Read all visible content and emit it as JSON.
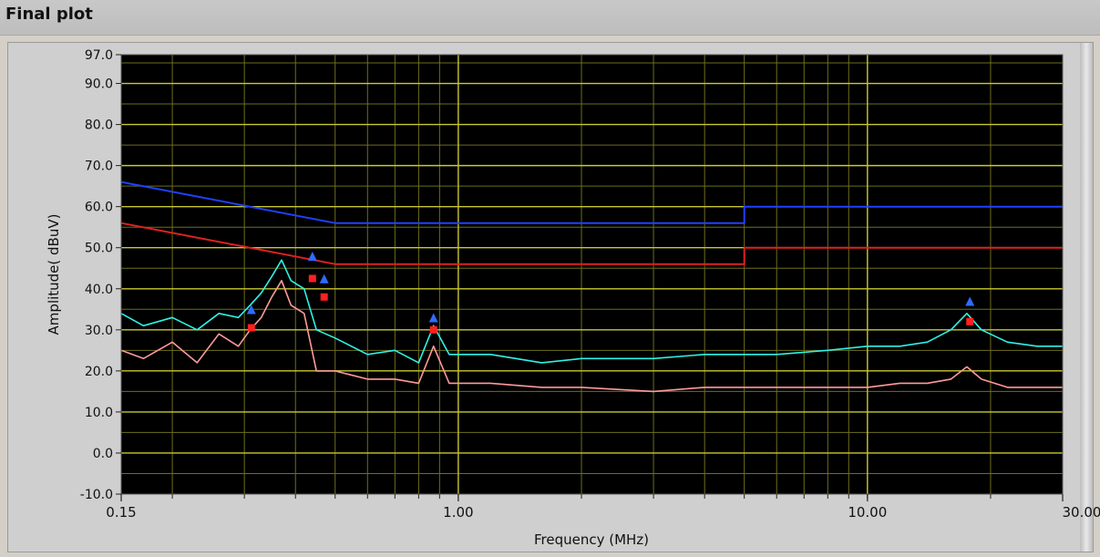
{
  "window": {
    "title": "Final plot"
  },
  "chart_data": {
    "type": "line",
    "xscale": "log",
    "xlim": [
      0.15,
      30.0
    ],
    "ylim": [
      -10.0,
      97.0
    ],
    "xlabel": "Frequency (MHz)",
    "ylabel": "Amplitude( dBuV)",
    "grid": true,
    "x_tick_labels": [
      {
        "value": 0.15,
        "label": "0.15"
      },
      {
        "value": 1.0,
        "label": "1.00"
      },
      {
        "value": 10.0,
        "label": "10.00"
      },
      {
        "value": 30.0,
        "label": "30.00"
      }
    ],
    "y_tick_labels": [
      {
        "value": 97.0,
        "label": "97.0"
      },
      {
        "value": 90.0,
        "label": "90.0"
      },
      {
        "value": 80.0,
        "label": "80.0"
      },
      {
        "value": 70.0,
        "label": "70.0"
      },
      {
        "value": 60.0,
        "label": "60.0"
      },
      {
        "value": 50.0,
        "label": "50.0"
      },
      {
        "value": 40.0,
        "label": "40.0"
      },
      {
        "value": 30.0,
        "label": "30.0"
      },
      {
        "value": 20.0,
        "label": "20.0"
      },
      {
        "value": 10.0,
        "label": "10.0"
      },
      {
        "value": 0.0,
        "label": "0.0"
      },
      {
        "value": -10.0,
        "label": "-10.0"
      }
    ],
    "colors": {
      "background": "#000000",
      "major_grid": "#c8c832",
      "minor_grid": "#6e6e1e",
      "qp_limit": "#2040ff",
      "avg_limit": "#e02020",
      "qp_trace": "#2ef2e6",
      "avg_trace": "#ff9a9a",
      "qp_marker": "#2f6bff",
      "avg_marker": "#ff2020"
    },
    "series": [
      {
        "role": "qp_limit",
        "x": [
          0.15,
          0.5,
          0.5,
          5.0,
          5.0,
          30.0
        ],
        "y": [
          66.0,
          56.0,
          56.0,
          56.0,
          60.0,
          60.0
        ]
      },
      {
        "role": "avg_limit",
        "x": [
          0.15,
          0.5,
          0.5,
          5.0,
          5.0,
          30.0
        ],
        "y": [
          56.0,
          46.0,
          46.0,
          46.0,
          50.0,
          50.0
        ]
      },
      {
        "role": "qp_trace",
        "x": [
          0.15,
          0.17,
          0.2,
          0.23,
          0.26,
          0.29,
          0.31,
          0.33,
          0.35,
          0.37,
          0.39,
          0.42,
          0.45,
          0.5,
          0.6,
          0.7,
          0.8,
          0.87,
          0.95,
          1.2,
          1.6,
          2.0,
          3.0,
          4.0,
          5.0,
          6.0,
          8.0,
          10.0,
          12.0,
          14.0,
          16.0,
          17.5,
          19.0,
          22.0,
          26.0,
          30.0
        ],
        "y": [
          34,
          31,
          33,
          30,
          34,
          33,
          36,
          39,
          43,
          47,
          42,
          40,
          30,
          28,
          24,
          25,
          22,
          31,
          24,
          24,
          22,
          23,
          23,
          24,
          24,
          24,
          25,
          26,
          26,
          27,
          30,
          34,
          30,
          27,
          26,
          26
        ]
      },
      {
        "role": "avg_trace",
        "x": [
          0.15,
          0.17,
          0.2,
          0.23,
          0.26,
          0.29,
          0.31,
          0.33,
          0.35,
          0.37,
          0.39,
          0.42,
          0.45,
          0.5,
          0.6,
          0.7,
          0.8,
          0.87,
          0.95,
          1.2,
          1.6,
          2.0,
          3.0,
          4.0,
          5.0,
          6.0,
          8.0,
          10.0,
          12.0,
          14.0,
          16.0,
          17.5,
          19.0,
          22.0,
          26.0,
          30.0
        ],
        "y": [
          25,
          23,
          27,
          22,
          29,
          26,
          30,
          33,
          38,
          42,
          36,
          34,
          20,
          20,
          18,
          18,
          17,
          26,
          17,
          17,
          16,
          16,
          15,
          16,
          16,
          16,
          16,
          16,
          17,
          17,
          18,
          21,
          18,
          16,
          16,
          16
        ]
      }
    ],
    "markers": {
      "qp": [
        {
          "x": 0.312,
          "y": 34.5
        },
        {
          "x": 0.44,
          "y": 47.5
        },
        {
          "x": 0.47,
          "y": 42.0
        },
        {
          "x": 0.87,
          "y": 32.5
        },
        {
          "x": 17.8,
          "y": 36.5
        }
      ],
      "avg": [
        {
          "x": 0.312,
          "y": 30.5
        },
        {
          "x": 0.44,
          "y": 42.5
        },
        {
          "x": 0.47,
          "y": 38.0
        },
        {
          "x": 0.87,
          "y": 30.0
        },
        {
          "x": 17.8,
          "y": 32.0
        }
      ]
    }
  }
}
